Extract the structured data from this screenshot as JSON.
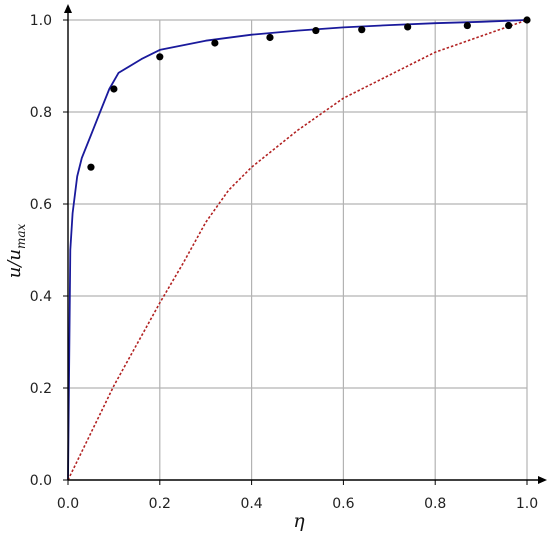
{
  "chart_data": {
    "type": "line",
    "title": "",
    "xlabel": "η",
    "ylabel": {
      "base": "u/u",
      "subscript": "max"
    },
    "xlim": [
      0,
      1
    ],
    "ylim": [
      0,
      1
    ],
    "grid": true,
    "legend": "none",
    "xticks": [
      "0.0",
      "0.2",
      "0.4",
      "0.6",
      "0.8",
      "1.0"
    ],
    "yticks": [
      "0.0",
      "0.2",
      "0.4",
      "0.6",
      "0.8",
      "1.0"
    ],
    "series": [
      {
        "style": "solid",
        "color": "#1a1a9c",
        "x": [
          0,
          0.005,
          0.01,
          0.02,
          0.03,
          0.05,
          0.07,
          0.09,
          0.11,
          0.16,
          0.2,
          0.3,
          0.4,
          0.5,
          0.6,
          0.7,
          0.8,
          0.9,
          1.0
        ],
        "y": [
          0,
          0.5,
          0.58,
          0.66,
          0.7,
          0.75,
          0.8,
          0.85,
          0.885,
          0.915,
          0.935,
          0.955,
          0.968,
          0.977,
          0.984,
          0.989,
          0.993,
          0.996,
          1.0
        ]
      },
      {
        "style": "dotted",
        "color": "#b22222",
        "x": [
          0,
          0.1,
          0.2,
          0.25,
          0.3,
          0.35,
          0.4,
          0.5,
          0.6,
          0.7,
          0.8,
          0.9,
          1.0
        ],
        "y": [
          0,
          0.205,
          0.385,
          0.47,
          0.56,
          0.63,
          0.68,
          0.76,
          0.83,
          0.88,
          0.93,
          0.965,
          1.0
        ]
      },
      {
        "style": "markers",
        "color": "#000000",
        "x": [
          0.05,
          0.1,
          0.2,
          0.32,
          0.44,
          0.54,
          0.64,
          0.74,
          0.87,
          0.96,
          1.0
        ],
        "y": [
          0.68,
          0.85,
          0.92,
          0.95,
          0.962,
          0.977,
          0.979,
          0.985,
          0.988,
          0.988,
          1.0
        ]
      }
    ]
  }
}
